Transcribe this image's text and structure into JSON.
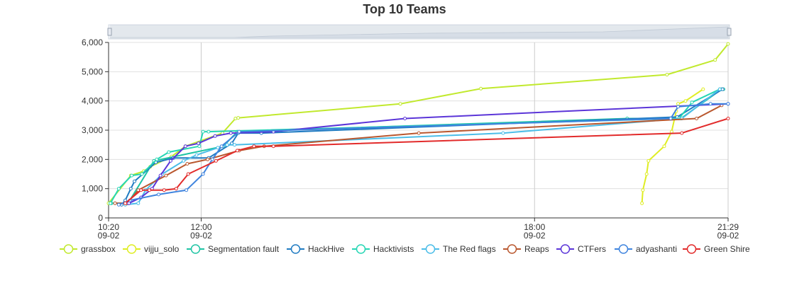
{
  "chart_data": {
    "type": "line",
    "title": "Top 10 Teams",
    "xlabel": "",
    "ylabel": "",
    "ylim": [
      0,
      6000
    ],
    "y_ticks": [
      0,
      1000,
      2000,
      3000,
      4000,
      5000,
      6000
    ],
    "y_tick_labels": [
      "0",
      "1,000",
      "2,000",
      "3,000",
      "4,000",
      "5,000",
      "6,000"
    ],
    "xlim": [
      "09-02 10:20",
      "09-02 21:29"
    ],
    "x_ticks": [
      {
        "time": "10:20",
        "date": "09-02"
      },
      {
        "time": "12:00",
        "date": "09-02"
      },
      {
        "time": "18:00",
        "date": "09-02"
      },
      {
        "time": "21:29",
        "date": "09-02"
      }
    ],
    "grid": true,
    "legend_position": "bottom",
    "has_zoom_slider": true,
    "series": [
      {
        "name": "grassbox",
        "color": "#c1e92d",
        "points": [
          [
            "10:20",
            500
          ],
          [
            "10:44",
            1450
          ],
          [
            "10:58",
            1600
          ],
          [
            "11:05",
            1750
          ],
          [
            "11:28",
            2100
          ],
          [
            "11:43",
            2450
          ],
          [
            "12:23",
            2900
          ],
          [
            "12:37",
            3400
          ],
          [
            "12:40",
            3420
          ],
          [
            "15:35",
            3900
          ],
          [
            "17:02",
            4420
          ],
          [
            "20:23",
            4900
          ],
          [
            "21:15",
            5400
          ],
          [
            "21:29",
            5950
          ]
        ]
      },
      {
        "name": "vijju_solo",
        "color": "#dfed23",
        "points": [
          [
            "19:56",
            500
          ],
          [
            "19:57",
            950
          ],
          [
            "20:01",
            1500
          ],
          [
            "20:03",
            1950
          ],
          [
            "20:20",
            2450
          ],
          [
            "20:28",
            2950
          ],
          [
            "20:33",
            3650
          ],
          [
            "20:35",
            3900
          ],
          [
            "20:43",
            4000
          ],
          [
            "21:02",
            4400
          ]
        ]
      },
      {
        "name": "Segmentation fault",
        "color": "#1ec4a4",
        "points": [
          [
            "10:23",
            500
          ],
          [
            "10:41",
            500
          ],
          [
            "11:09",
            1950
          ],
          [
            "12:24",
            2450
          ],
          [
            "12:39",
            2950
          ],
          [
            "19:40",
            3400
          ],
          [
            "20:38",
            3400
          ],
          [
            "21:22",
            4400
          ],
          [
            "21:24",
            4400
          ]
        ]
      },
      {
        "name": "HackHive",
        "color": "#1f7bc2",
        "points": [
          [
            "10:34",
            450
          ],
          [
            "10:38",
            600
          ],
          [
            "10:44",
            1000
          ],
          [
            "10:48",
            1250
          ],
          [
            "11:11",
            1900
          ],
          [
            "11:30",
            2050
          ],
          [
            "12:08",
            2050
          ],
          [
            "12:33",
            2550
          ],
          [
            "12:40",
            2900
          ],
          [
            "13:05",
            2900
          ],
          [
            "20:34",
            3450
          ],
          [
            "21:23",
            4400
          ]
        ]
      },
      {
        "name": "Hacktivists",
        "color": "#25d6b4",
        "points": [
          [
            "10:22",
            500
          ],
          [
            "10:31",
            1000
          ],
          [
            "10:45",
            1450
          ],
          [
            "10:56",
            1500
          ],
          [
            "11:12",
            2000
          ],
          [
            "11:25",
            2250
          ],
          [
            "11:58",
            2450
          ],
          [
            "12:02",
            2950
          ],
          [
            "12:08",
            2950
          ],
          [
            "20:36",
            3400
          ],
          [
            "20:50",
            3950
          ],
          [
            "21:20",
            4400
          ]
        ]
      },
      {
        "name": "The Red flags",
        "color": "#4bbde8",
        "points": [
          [
            "10:38",
            450
          ],
          [
            "10:52",
            500
          ],
          [
            "11:00",
            950
          ],
          [
            "11:18",
            1500
          ],
          [
            "11:41",
            1950
          ],
          [
            "11:55",
            2150
          ],
          [
            "12:18",
            2400
          ],
          [
            "12:28",
            2500
          ],
          [
            "12:36",
            2500
          ],
          [
            "17:26",
            2900
          ],
          [
            "20:39",
            3400
          ],
          [
            "21:20",
            4400
          ]
        ]
      },
      {
        "name": "Reaps",
        "color": "#b9572e",
        "points": [
          [
            "10:27",
            500
          ],
          [
            "10:40",
            500
          ],
          [
            "10:52",
            950
          ],
          [
            "11:22",
            1450
          ],
          [
            "11:45",
            1850
          ],
          [
            "12:07",
            2000
          ],
          [
            "12:41",
            2300
          ],
          [
            "13:08",
            2450
          ],
          [
            "15:55",
            2900
          ],
          [
            "20:55",
            3400
          ],
          [
            "21:22",
            3850
          ]
        ]
      },
      {
        "name": "CTFers",
        "color": "#5b35d8",
        "points": [
          [
            "10:42",
            500
          ],
          [
            "10:55",
            700
          ],
          [
            "11:07",
            1000
          ],
          [
            "11:16",
            1450
          ],
          [
            "11:27",
            1950
          ],
          [
            "11:43",
            2450
          ],
          [
            "11:57",
            2550
          ],
          [
            "12:15",
            2800
          ],
          [
            "12:32",
            2900
          ],
          [
            "13:18",
            2950
          ],
          [
            "15:40",
            3400
          ],
          [
            "21:29",
            3900
          ]
        ]
      },
      {
        "name": "adyashanti",
        "color": "#3f84de",
        "points": [
          [
            "10:31",
            450
          ],
          [
            "10:43",
            600
          ],
          [
            "11:14",
            800
          ],
          [
            "11:44",
            950
          ],
          [
            "12:02",
            1500
          ],
          [
            "12:12",
            2000
          ],
          [
            "12:22",
            2450
          ],
          [
            "12:41",
            2950
          ],
          [
            "20:27",
            3400
          ],
          [
            "20:35",
            3800
          ],
          [
            "21:10",
            3900
          ],
          [
            "21:29",
            3900
          ]
        ]
      },
      {
        "name": "Green Shire",
        "color": "#e22b2b",
        "points": [
          [
            "10:38",
            500
          ],
          [
            "10:55",
            950
          ],
          [
            "11:04",
            950
          ],
          [
            "11:20",
            950
          ],
          [
            "11:33",
            1000
          ],
          [
            "11:46",
            1500
          ],
          [
            "12:16",
            1950
          ],
          [
            "12:39",
            2300
          ],
          [
            "12:57",
            2450
          ],
          [
            "13:18",
            2450
          ],
          [
            "20:39",
            2900
          ],
          [
            "21:29",
            3400
          ]
        ]
      }
    ]
  }
}
